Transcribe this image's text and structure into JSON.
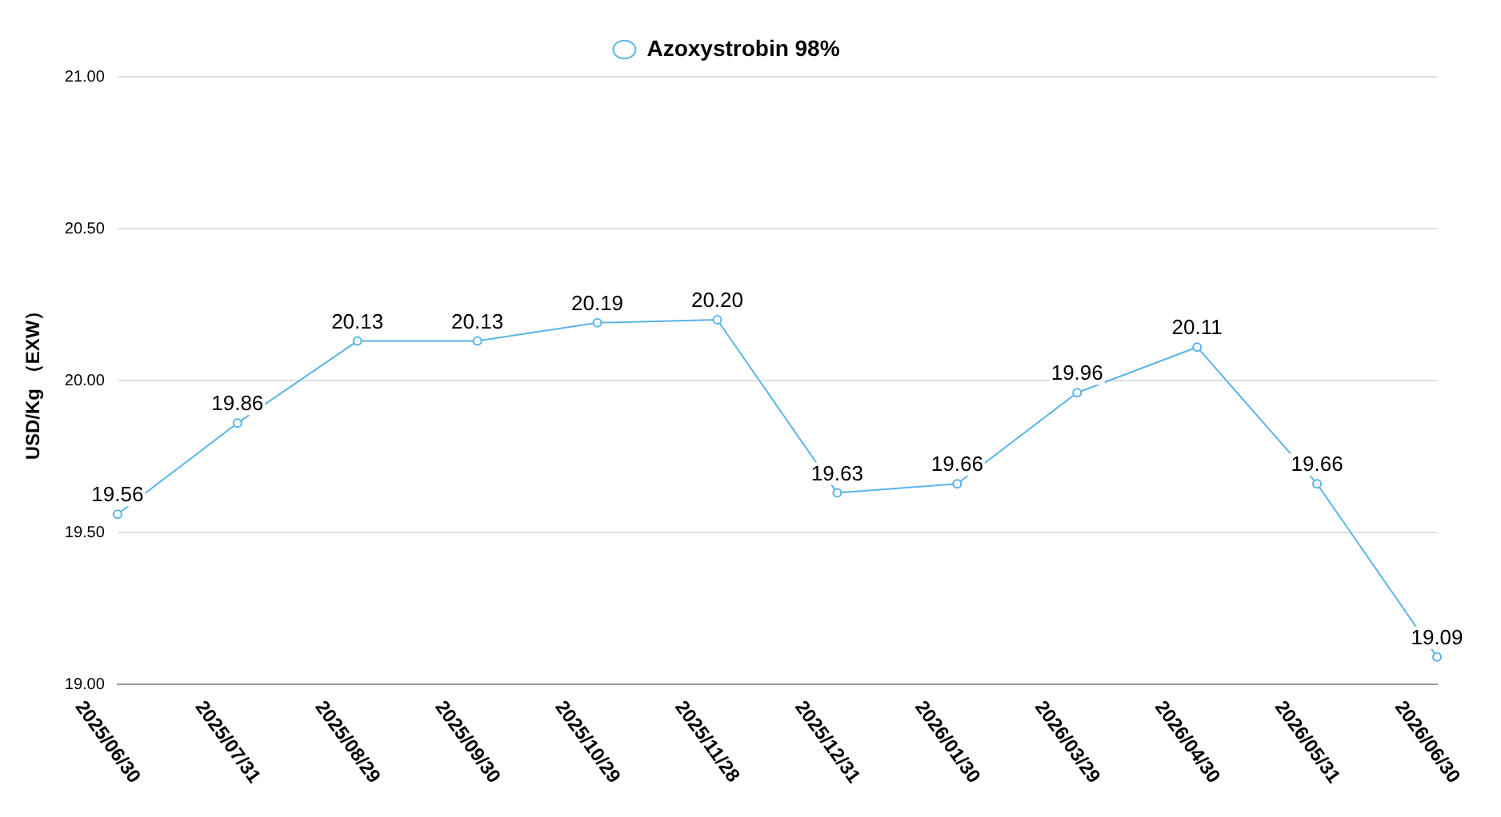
{
  "chart_data": {
    "type": "line",
    "ylabel": "USD/Kg （EXW）",
    "categories": [
      "2025/06/30",
      "2025/07/31",
      "2025/08/29",
      "2025/09/30",
      "2025/10/29",
      "2025/11/28",
      "2025/12/31",
      "2026/01/30",
      "2026/03/29",
      "2026/04/30",
      "2026/05/31",
      "2026/06/30"
    ],
    "series": [
      {
        "name": "Azoxystrobin 98%",
        "color": "#5ab4e8",
        "values": [
          19.56,
          19.86,
          20.13,
          20.13,
          20.19,
          20.2,
          19.63,
          19.66,
          19.96,
          20.11,
          19.66,
          19.09
        ],
        "value_labels": [
          "19.56",
          "19.86",
          "20.13",
          "20.13",
          "20.19",
          "20.20",
          "19.63",
          "19.66",
          "19.96",
          "20.11",
          "19.66",
          "19.09"
        ]
      }
    ],
    "ylim": [
      19,
      21
    ],
    "yticks": [
      {
        "value": 19,
        "label": "19.00"
      },
      {
        "value": 19.5,
        "label": "19.50"
      },
      {
        "value": 20,
        "label": "20.00"
      },
      {
        "value": 20.5,
        "label": "20.50"
      },
      {
        "value": 21,
        "label": "21.00"
      }
    ],
    "grid": "y",
    "legend": "top",
    "marker": "circle",
    "line_style": "solid"
  }
}
